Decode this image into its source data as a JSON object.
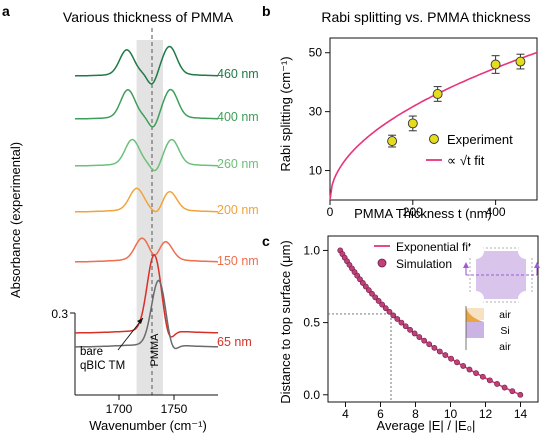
{
  "panels": {
    "a": {
      "letter": "a",
      "title": "Various thickness of PMMA",
      "ylabel": "Absorbance (experimental)",
      "xlabel": "Wavenumber (cm⁻¹)",
      "y_tick": "0.3",
      "annotation_bare": [
        "bare",
        "qBIC TM"
      ],
      "annotation_pmma": "PMMA"
    },
    "b": {
      "letter": "b",
      "title": "Rabi splitting vs. PMMA thickness",
      "xlabel": "PMMA Thickness t (nm)",
      "ylabel": "Rabi splitting (cm⁻¹)",
      "legend": [
        "Experiment",
        "∝ √t  fit"
      ]
    },
    "c": {
      "letter": "c",
      "xlabel": "Average |E| / |E₀|",
      "ylabel": "Distance to top surface (μm)",
      "legend": [
        "Exponential fit",
        "Simulation"
      ],
      "inset_labels": [
        "air",
        "Si",
        "air"
      ]
    }
  },
  "colors": {
    "fit_line": "#e8347a",
    "experiment_marker": "#e6dc1e",
    "simulation_marker": "#c2407a",
    "guide_band": "#d9d9d9",
    "inset_purple": "#b98fd6",
    "inset_orange": "#e9a640"
  },
  "chart_data": [
    {
      "panel": "a",
      "type": "line",
      "title": "Various thickness of PMMA",
      "xlabel": "Wavenumber (cm⁻¹)",
      "ylabel": "Absorbance (experimental)",
      "xlim": [
        1660,
        1790
      ],
      "x_ticks": [
        1700,
        1750
      ],
      "y_ticks": [
        0.3
      ],
      "dashed_reference_x": 1730,
      "shaded_band_x": [
        1716,
        1740
      ],
      "series": [
        {
          "name": "460 nm",
          "color": "#1e7a46",
          "peaks": [
            [
              1707,
              0.08
            ],
            [
              1746,
              0.09
            ]
          ],
          "dip": [
            1730,
            -0.04
          ]
        },
        {
          "name": "400 nm",
          "color": "#3f9e5a",
          "peaks": [
            [
              1708,
              0.09
            ],
            [
              1747,
              0.09
            ]
          ],
          "dip": [
            1731,
            -0.04
          ]
        },
        {
          "name": "260 nm",
          "color": "#6cc07b",
          "peaks": [
            [
              1712,
              0.08
            ],
            [
              1748,
              0.08
            ]
          ],
          "dip": [
            1733,
            -0.03
          ]
        },
        {
          "name": "200 nm",
          "color": "#f2a33a",
          "peaks": [
            [
              1716,
              0.07
            ],
            [
              1746,
              0.06
            ]
          ],
          "dip": [
            1735,
            -0.02
          ]
        },
        {
          "name": "150 nm",
          "color": "#ee6e4e",
          "peaks": [
            [
              1721,
              0.07
            ],
            [
              1742,
              0.06
            ]
          ],
          "dip": [
            1733,
            -0.02
          ]
        },
        {
          "name": "65 nm",
          "color": "#d73027",
          "peaks": [
            [
              1732,
              0.33
            ]
          ],
          "dip": [
            1745,
            -0.05
          ]
        },
        {
          "name": "bare qBIC TM",
          "color": "#6b6b6b",
          "peaks": [
            [
              1736,
              0.28
            ]
          ],
          "dip": [
            1748,
            -0.04
          ]
        }
      ]
    },
    {
      "panel": "b",
      "type": "scatter",
      "title": "Rabi splitting vs. PMMA thickness",
      "xlabel": "PMMA Thickness t (nm)",
      "ylabel": "Rabi splitting (cm⁻¹)",
      "xlim": [
        0,
        500
      ],
      "ylim": [
        0,
        55
      ],
      "x_ticks": [
        0,
        200,
        400
      ],
      "y_ticks": [
        10,
        30,
        50
      ],
      "series": [
        {
          "name": "Experiment",
          "x": [
            150,
            200,
            260,
            400,
            460
          ],
          "y": [
            20,
            26,
            36,
            46,
            47
          ],
          "err": [
            2,
            2.5,
            2.5,
            3,
            2.5
          ]
        },
        {
          "name": "∝ √t fit",
          "fit": "sqrt",
          "k": 2.24
        }
      ],
      "legend": "bottom-right",
      "grid": false
    },
    {
      "panel": "c",
      "type": "scatter",
      "xlabel": "Average |E| / |E₀|",
      "ylabel": "Distance to top surface (μm)",
      "xlim": [
        3,
        15
      ],
      "ylim": [
        -0.05,
        1.1
      ],
      "x_ticks": [
        4,
        6,
        8,
        10,
        12,
        14
      ],
      "y_ticks": [
        0.0,
        0.5,
        1.0
      ],
      "reference_point": [
        6.6,
        0.56
      ],
      "series": [
        {
          "name": "Exponential fit",
          "model": "x = 3.7 * exp(1.33 * (1 - y))"
        },
        {
          "name": "Simulation",
          "y": [
            1.0,
            0.975,
            0.95,
            0.925,
            0.9,
            0.875,
            0.85,
            0.825,
            0.8,
            0.775,
            0.75,
            0.725,
            0.7,
            0.675,
            0.65,
            0.625,
            0.6,
            0.575,
            0.55,
            0.525,
            0.5,
            0.475,
            0.45,
            0.425,
            0.4,
            0.375,
            0.35,
            0.325,
            0.3,
            0.275,
            0.25,
            0.225,
            0.2,
            0.175,
            0.15,
            0.125,
            0.1,
            0.075,
            0.05,
            0.025,
            0.0
          ]
        }
      ],
      "legend": "top-left",
      "grid": false
    }
  ]
}
